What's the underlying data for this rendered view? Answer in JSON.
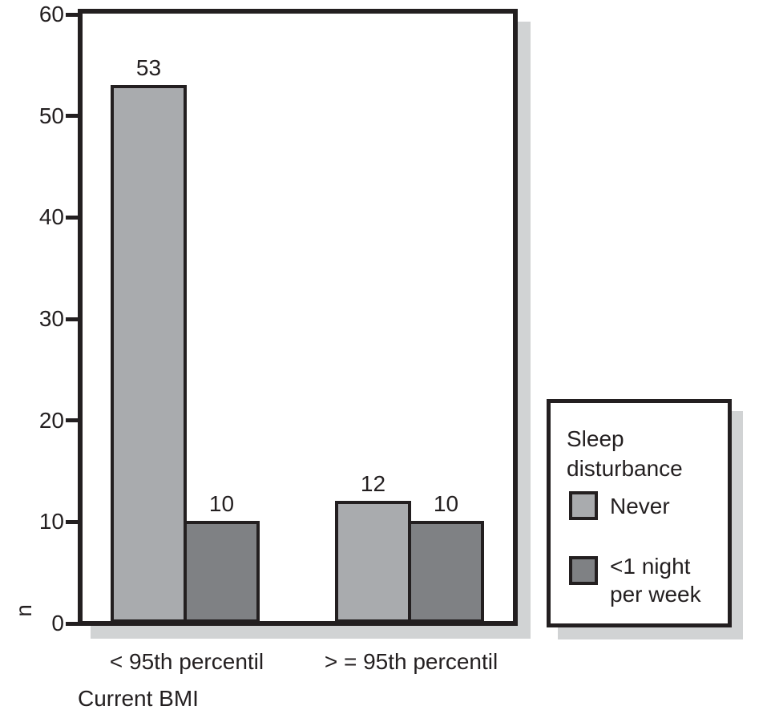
{
  "chart_data": {
    "type": "bar",
    "title": "",
    "categories": [
      "< 95th percentil",
      "> = 95th percentil"
    ],
    "series": [
      {
        "name": "Never",
        "color": "#a9abae",
        "values": [
          53,
          12
        ]
      },
      {
        "name": "<1 night per week",
        "color": "#7f8184",
        "values": [
          10,
          10
        ]
      }
    ],
    "bar_value_labels": [
      [
        53,
        12
      ],
      [
        10,
        10
      ]
    ],
    "xlabel": "Current BMI",
    "ylabel": "n",
    "ylim": [
      0,
      60
    ],
    "yticks": [
      0,
      10,
      20,
      30,
      40,
      50,
      60
    ],
    "grid": false,
    "legend": {
      "title": "Sleep disturbance",
      "position": "right",
      "entries": [
        "Never",
        "<1 night per week"
      ]
    },
    "colors": {
      "frame_border": "#231f20",
      "bar_border": "#231f20",
      "shadow": "#d1d3d4",
      "text": "#231f20",
      "background": "#ffffff"
    }
  }
}
